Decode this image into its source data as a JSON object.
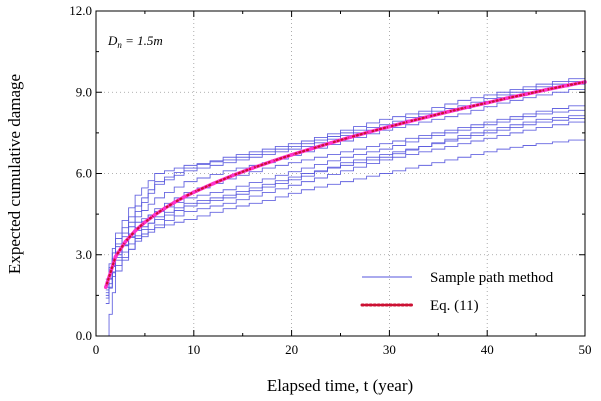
{
  "chart_data": {
    "type": "line",
    "title": "",
    "xlabel": "Elapsed time, t (year)",
    "ylabel": "Expected cumulative damage",
    "xlim": [
      0,
      50
    ],
    "ylim": [
      0,
      12
    ],
    "x_ticks": [
      0,
      10,
      20,
      30,
      40,
      50
    ],
    "y_ticks": [
      0,
      3,
      6,
      9,
      12
    ],
    "y_tick_labels": [
      "0.0",
      "3.0",
      "6.0",
      "9.0",
      "12.0"
    ],
    "x_tick_labels": [
      "0",
      "10",
      "20",
      "30",
      "40",
      "50"
    ],
    "grid": true,
    "legend_position": "bottom-right",
    "annotation": {
      "main": "D",
      "sub": "n",
      "rest": " = 1.5m"
    },
    "series": [
      {
        "name": "Sample path method",
        "style": "step",
        "color": "#5555dd",
        "paths": [
          [
            [
              1,
              0.0
            ],
            [
              2,
              2.4
            ],
            [
              4,
              3.6
            ],
            [
              6,
              4.1
            ],
            [
              9,
              4.6
            ],
            [
              13,
              4.9
            ],
            [
              17,
              5.3
            ],
            [
              21,
              5.7
            ],
            [
              25,
              6.1
            ],
            [
              29,
              6.5
            ],
            [
              33,
              6.8
            ],
            [
              37,
              7.1
            ],
            [
              41,
              7.4
            ],
            [
              45,
              7.7
            ],
            [
              50,
              8.0
            ]
          ],
          [
            [
              1,
              1.2
            ],
            [
              2,
              2.9
            ],
            [
              4,
              4.2
            ],
            [
              6,
              4.6
            ],
            [
              9,
              5.1
            ],
            [
              13,
              5.4
            ],
            [
              17,
              5.8
            ],
            [
              21,
              6.2
            ],
            [
              25,
              6.6
            ],
            [
              29,
              6.9
            ],
            [
              33,
              7.3
            ],
            [
              37,
              7.6
            ],
            [
              41,
              7.9
            ],
            [
              45,
              8.2
            ],
            [
              50,
              8.4
            ]
          ],
          [
            [
              1,
              1.6
            ],
            [
              2,
              3.1
            ],
            [
              4,
              3.9
            ],
            [
              6,
              4.3
            ],
            [
              9,
              4.8
            ],
            [
              13,
              5.1
            ],
            [
              17,
              5.5
            ],
            [
              21,
              5.9
            ],
            [
              25,
              6.4
            ],
            [
              29,
              6.7
            ],
            [
              33,
              7.0
            ],
            [
              37,
              7.4
            ],
            [
              41,
              7.7
            ],
            [
              45,
              8.0
            ],
            [
              50,
              8.2
            ]
          ],
          [
            [
              1,
              1.8
            ],
            [
              2,
              3.4
            ],
            [
              4,
              4.6
            ],
            [
              6,
              5.6
            ],
            [
              9,
              6.1
            ],
            [
              13,
              6.4
            ],
            [
              17,
              6.7
            ],
            [
              21,
              7.0
            ],
            [
              25,
              7.4
            ],
            [
              29,
              7.7
            ],
            [
              33,
              8.1
            ],
            [
              37,
              8.4
            ],
            [
              41,
              8.8
            ],
            [
              45,
              9.1
            ],
            [
              50,
              9.4
            ]
          ],
          [
            [
              1,
              1.4
            ],
            [
              2,
              2.6
            ],
            [
              4,
              3.5
            ],
            [
              6,
              4.0
            ],
            [
              9,
              4.3
            ],
            [
              13,
              4.7
            ],
            [
              17,
              5.0
            ],
            [
              21,
              5.4
            ],
            [
              25,
              5.7
            ],
            [
              29,
              6.0
            ],
            [
              33,
              6.3
            ],
            [
              37,
              6.6
            ],
            [
              41,
              6.9
            ],
            [
              45,
              7.1
            ],
            [
              50,
              7.3
            ]
          ],
          [
            [
              1,
              2.0
            ],
            [
              2,
              3.6
            ],
            [
              4,
              4.8
            ],
            [
              6,
              5.7
            ],
            [
              9,
              6.2
            ],
            [
              13,
              6.6
            ],
            [
              17,
              6.9
            ],
            [
              21,
              7.2
            ],
            [
              25,
              7.6
            ],
            [
              29,
              8.0
            ],
            [
              33,
              8.3
            ],
            [
              37,
              8.7
            ],
            [
              41,
              9.0
            ],
            [
              45,
              9.3
            ],
            [
              50,
              9.6
            ]
          ],
          [
            [
              1,
              1.7
            ],
            [
              2,
              3.0
            ],
            [
              4,
              4.0
            ],
            [
              6,
              4.7
            ],
            [
              9,
              5.3
            ],
            [
              13,
              5.8
            ],
            [
              17,
              6.2
            ],
            [
              21,
              6.5
            ],
            [
              25,
              6.8
            ],
            [
              29,
              7.1
            ],
            [
              33,
              7.4
            ],
            [
              37,
              7.7
            ],
            [
              41,
              8.0
            ],
            [
              45,
              8.3
            ],
            [
              50,
              8.6
            ]
          ],
          [
            [
              1,
              1.9
            ],
            [
              2,
              3.3
            ],
            [
              4,
              4.4
            ],
            [
              6,
              5.1
            ],
            [
              9,
              5.7
            ],
            [
              13,
              6.1
            ],
            [
              17,
              6.4
            ],
            [
              21,
              6.8
            ],
            [
              25,
              7.2
            ],
            [
              29,
              7.6
            ],
            [
              33,
              7.9
            ],
            [
              37,
              8.2
            ],
            [
              41,
              8.6
            ],
            [
              45,
              8.9
            ],
            [
              50,
              9.2
            ]
          ],
          [
            [
              1,
              1.5
            ],
            [
              2,
              2.8
            ],
            [
              4,
              3.7
            ],
            [
              6,
              4.4
            ],
            [
              9,
              4.9
            ],
            [
              13,
              5.2
            ],
            [
              17,
              5.6
            ],
            [
              21,
              6.0
            ],
            [
              25,
              6.3
            ],
            [
              29,
              6.6
            ],
            [
              33,
              7.0
            ],
            [
              37,
              7.3
            ],
            [
              41,
              7.6
            ],
            [
              45,
              7.9
            ],
            [
              50,
              8.1
            ]
          ],
          [
            [
              1,
              2.1
            ],
            [
              2,
              3.8
            ],
            [
              4,
              5.2
            ],
            [
              6,
              6.0
            ],
            [
              9,
              6.3
            ],
            [
              13,
              6.5
            ],
            [
              17,
              6.8
            ],
            [
              21,
              7.1
            ],
            [
              25,
              7.5
            ],
            [
              29,
              7.8
            ],
            [
              33,
              8.2
            ],
            [
              37,
              8.5
            ],
            [
              41,
              8.9
            ],
            [
              45,
              9.2
            ],
            [
              50,
              9.5
            ]
          ]
        ]
      },
      {
        "name": "Eq. (11)",
        "style": "dotted-line",
        "color": "#cc1133",
        "overlay_color": "#ff33cc",
        "x": [
          1,
          2,
          3,
          4,
          5,
          6,
          7,
          8,
          9,
          10,
          12,
          14,
          16,
          18,
          20,
          22,
          24,
          26,
          28,
          30,
          32,
          34,
          36,
          38,
          40,
          42,
          44,
          46,
          48,
          50
        ],
        "y": [
          1.8,
          2.93,
          3.48,
          3.88,
          4.2,
          4.47,
          4.71,
          4.93,
          5.13,
          5.31,
          5.63,
          5.93,
          6.2,
          6.45,
          6.69,
          6.91,
          7.13,
          7.34,
          7.54,
          7.73,
          7.92,
          8.1,
          8.28,
          8.45,
          8.61,
          8.78,
          8.93,
          9.09,
          9.24,
          9.38
        ]
      }
    ]
  }
}
